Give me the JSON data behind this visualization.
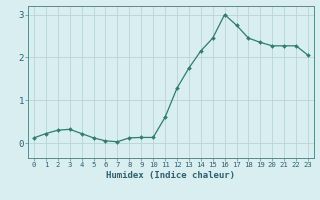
{
  "x": [
    0,
    1,
    2,
    3,
    4,
    5,
    6,
    7,
    8,
    9,
    10,
    11,
    12,
    13,
    14,
    15,
    16,
    17,
    18,
    19,
    20,
    21,
    22,
    23
  ],
  "y": [
    0.12,
    0.22,
    0.3,
    0.32,
    0.22,
    0.12,
    0.05,
    0.03,
    0.12,
    0.13,
    0.13,
    0.6,
    1.28,
    1.75,
    2.15,
    2.45,
    3.0,
    2.75,
    2.45,
    2.35,
    2.27,
    2.27,
    2.27,
    2.05
  ],
  "line_color": "#2e7d6e",
  "bg_color": "#d9eef0",
  "grid_color": "#b8d4d8",
  "xlabel": "Humidex (Indice chaleur)",
  "xlabel_color": "#2e5f6e",
  "tick_color": "#2e5f6e",
  "spine_color": "#5a8a8a",
  "ylim": [
    -0.35,
    3.2
  ],
  "xlim": [
    -0.5,
    23.5
  ],
  "yticks": [
    0,
    1,
    2,
    3
  ],
  "xticks": [
    0,
    1,
    2,
    3,
    4,
    5,
    6,
    7,
    8,
    9,
    10,
    11,
    12,
    13,
    14,
    15,
    16,
    17,
    18,
    19,
    20,
    21,
    22,
    23
  ],
  "figsize": [
    3.2,
    2.0
  ],
  "dpi": 100
}
